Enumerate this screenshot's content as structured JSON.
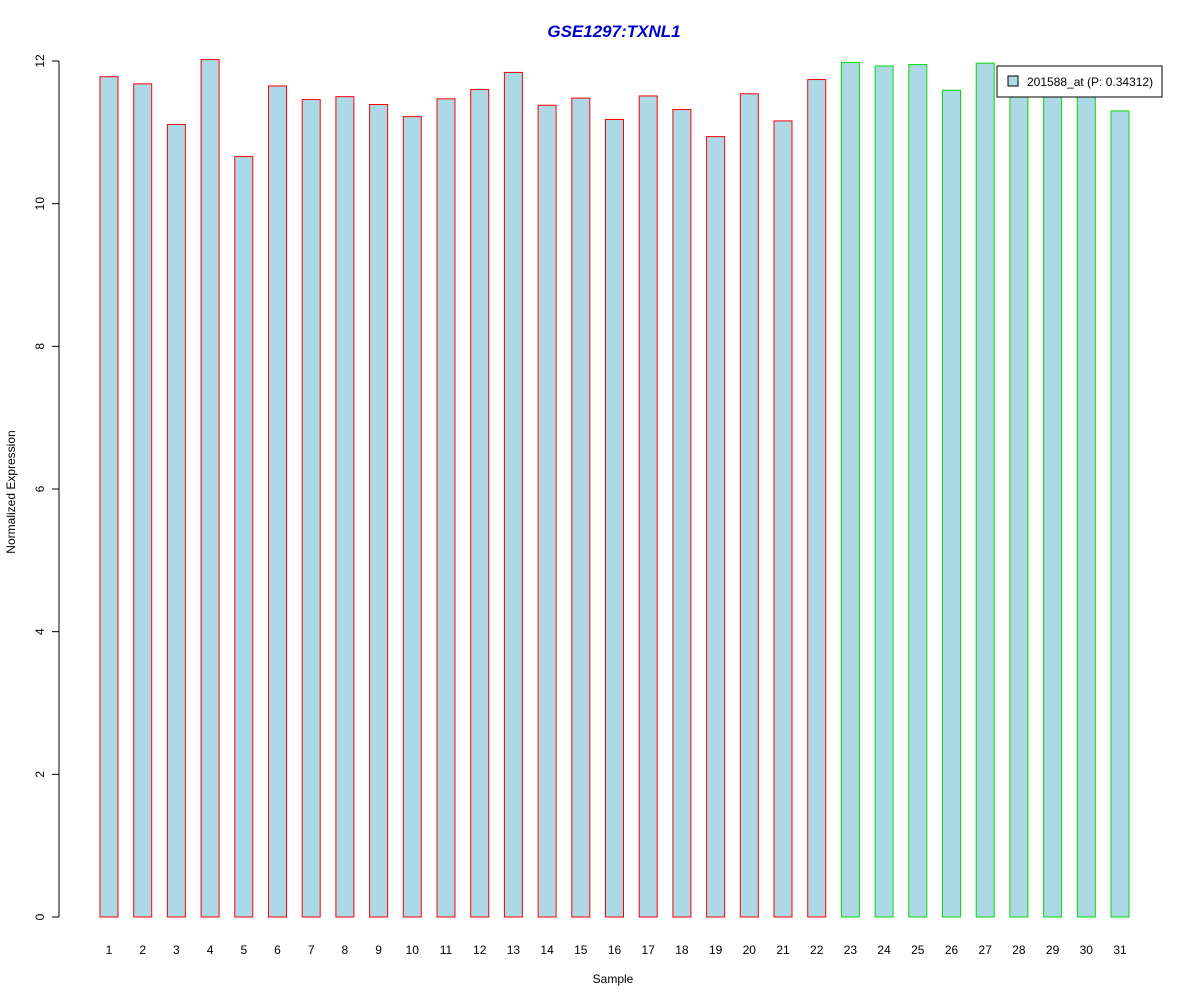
{
  "chart_data": {
    "type": "bar",
    "title": "GSE1297:TXNL1",
    "xlabel": "Sample",
    "ylabel": "Normalized Expression",
    "ylim": [
      0,
      12
    ],
    "yticks": [
      0,
      2,
      4,
      6,
      8,
      10,
      12
    ],
    "grid": false,
    "categories": [
      "1",
      "2",
      "3",
      "4",
      "5",
      "6",
      "7",
      "8",
      "9",
      "10",
      "11",
      "12",
      "13",
      "14",
      "15",
      "16",
      "17",
      "18",
      "19",
      "20",
      "21",
      "22",
      "23",
      "24",
      "25",
      "26",
      "27",
      "28",
      "29",
      "30",
      "31"
    ],
    "series": [
      {
        "name": "201588_at (P: 0.34312)",
        "values": [
          11.78,
          11.68,
          11.11,
          12.02,
          10.66,
          11.65,
          11.46,
          11.5,
          11.39,
          11.22,
          11.47,
          11.6,
          11.84,
          11.38,
          11.48,
          11.18,
          11.51,
          11.32,
          10.94,
          11.54,
          11.16,
          11.74,
          11.98,
          11.93,
          11.95,
          11.59,
          11.97,
          11.78,
          11.68,
          11.58,
          11.3
        ]
      }
    ],
    "bar_group": [
      "red",
      "red",
      "red",
      "red",
      "red",
      "red",
      "red",
      "red",
      "red",
      "red",
      "red",
      "red",
      "red",
      "red",
      "red",
      "red",
      "red",
      "red",
      "red",
      "red",
      "red",
      "red",
      "green",
      "green",
      "green",
      "green",
      "green",
      "green",
      "green",
      "green",
      "green"
    ],
    "legend_position": "top-right"
  },
  "colors": {
    "title": "#0000CC",
    "bar_fill": "#ADD8E6",
    "border_red": "#FF0000",
    "border_green": "#00DD00",
    "axis": "#000000",
    "background": "#FFFFFF"
  }
}
